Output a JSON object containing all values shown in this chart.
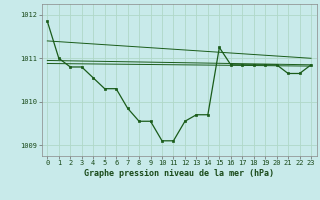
{
  "xlabel": "Graphe pression niveau de la mer (hPa)",
  "bg_color": "#c8eaea",
  "grid_color": "#b0d8c8",
  "line_color": "#1a5c1a",
  "dot_color": "#1a5c1a",
  "pressure_data": [
    1011.85,
    1011.0,
    1010.8,
    1010.8,
    1010.55,
    1010.3,
    1010.3,
    1009.85,
    1009.55,
    1009.55,
    1009.1,
    1009.1,
    1009.55,
    1009.7,
    1009.7,
    1011.25,
    1010.85,
    1010.85,
    1010.85,
    1010.85,
    1010.85,
    1010.65,
    1010.65,
    1010.85
  ],
  "ylim_min": 1008.75,
  "ylim_max": 1012.25,
  "yticks": [
    1009,
    1010,
    1011,
    1012
  ],
  "xticks": [
    0,
    1,
    2,
    3,
    4,
    5,
    6,
    7,
    8,
    9,
    10,
    11,
    12,
    13,
    14,
    15,
    16,
    17,
    18,
    19,
    20,
    21,
    22,
    23
  ],
  "trend1": [
    1011.4,
    1011.0
  ],
  "trend2": [
    1010.95,
    1010.85
  ],
  "trend3": [
    1010.88,
    1010.82
  ]
}
